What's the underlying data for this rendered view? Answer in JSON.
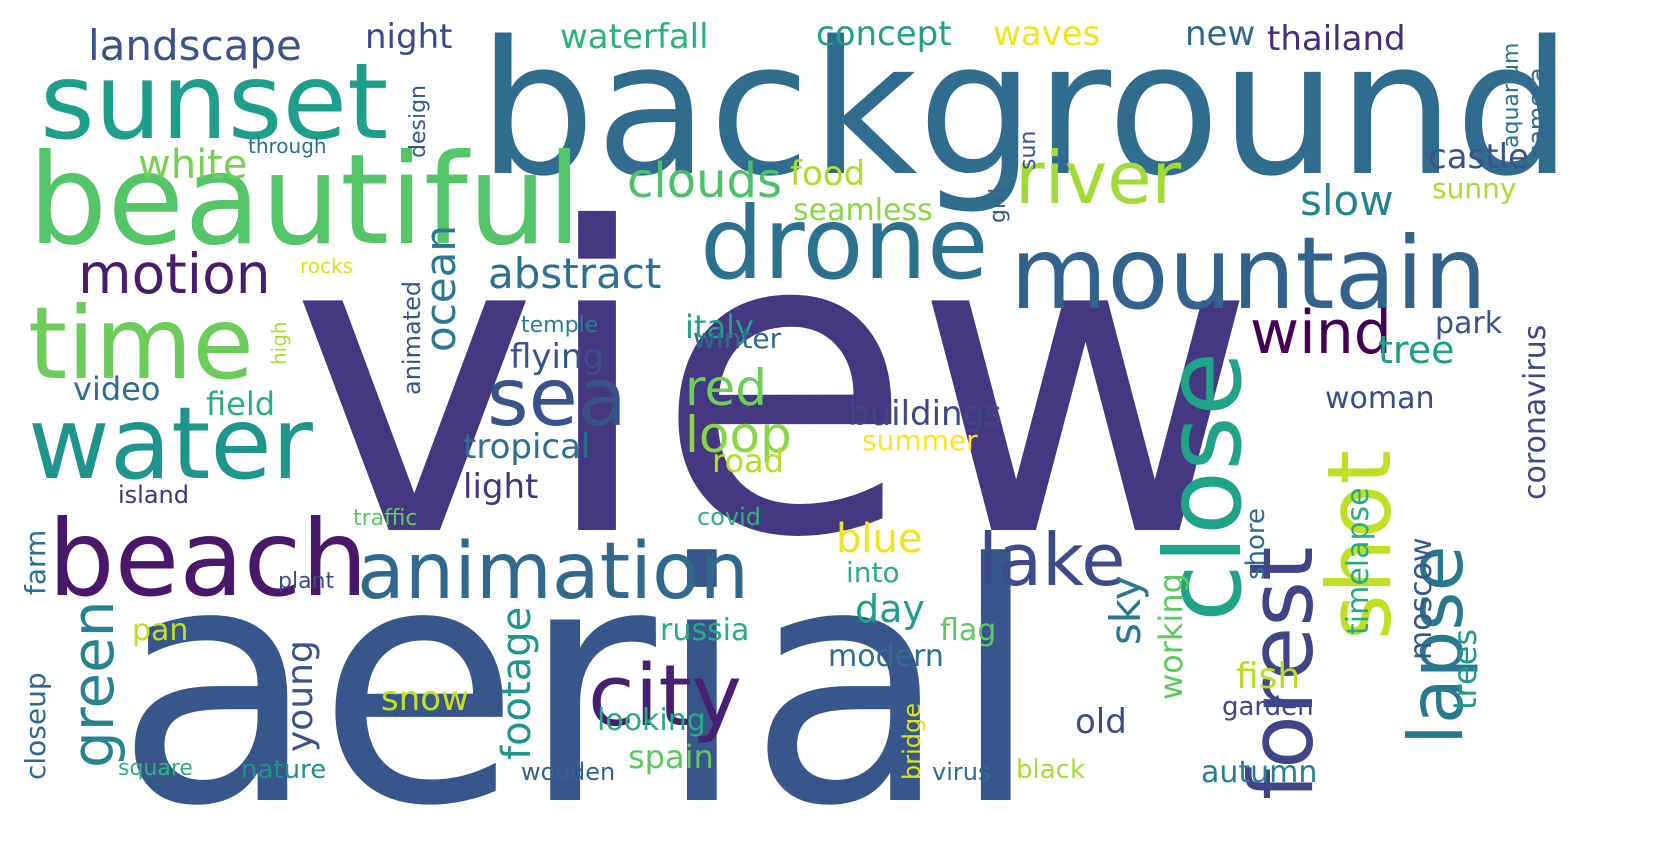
{
  "word_cloud": {
    "words": [
      {
        "text": "view",
        "color": "#453781"
      },
      {
        "text": "aerial",
        "color": "#39568c"
      },
      {
        "text": "background",
        "color": "#2f6c8e"
      },
      {
        "text": "beautiful",
        "color": "#54c568"
      },
      {
        "text": "sunset",
        "color": "#1f9e89"
      },
      {
        "text": "drone",
        "color": "#2c728e"
      },
      {
        "text": "mountain",
        "color": "#33638d"
      },
      {
        "text": "water",
        "color": "#1f958b"
      },
      {
        "text": "time",
        "color": "#6ccd5a"
      },
      {
        "text": "beach",
        "color": "#48186a"
      },
      {
        "text": "animation",
        "color": "#31688e"
      },
      {
        "text": "river",
        "color": "#a2da37"
      },
      {
        "text": "sea",
        "color": "#3a538b"
      },
      {
        "text": "city",
        "color": "#482071"
      },
      {
        "text": "lake",
        "color": "#3e4a89"
      },
      {
        "text": "close",
        "color": "#20a386"
      },
      {
        "text": "forest",
        "color": "#414487"
      },
      {
        "text": "shot",
        "color": "#c0df25"
      },
      {
        "text": "lapse",
        "color": "#2a788e"
      },
      {
        "text": "motion",
        "color": "#481c6e"
      },
      {
        "text": "green",
        "color": "#25848e"
      },
      {
        "text": "wind",
        "color": "#440154"
      },
      {
        "text": "landscape",
        "color": "#3b528b"
      },
      {
        "text": "abstract",
        "color": "#2c728e"
      },
      {
        "text": "clouds",
        "color": "#4ac16d"
      },
      {
        "text": "slow",
        "color": "#25848e"
      },
      {
        "text": "white",
        "color": "#75d054"
      },
      {
        "text": "ocean",
        "color": "#2a788e"
      },
      {
        "text": "red",
        "color": "#6ece58"
      },
      {
        "text": "loop",
        "color": "#8bd646"
      },
      {
        "text": "night",
        "color": "#3e4989"
      },
      {
        "text": "waterfall",
        "color": "#2db27d"
      },
      {
        "text": "concept",
        "color": "#1fa188"
      },
      {
        "text": "waves",
        "color": "#f1e51d"
      },
      {
        "text": "new",
        "color": "#31688e"
      },
      {
        "text": "thailand",
        "color": "#472d7b"
      },
      {
        "text": "castle",
        "color": "#3b528b"
      },
      {
        "text": "food",
        "color": "#b2dd2d"
      },
      {
        "text": "seamless",
        "color": "#8ed645"
      },
      {
        "text": "sunny",
        "color": "#addc30"
      },
      {
        "text": "aquarium",
        "color": "#2c728e"
      },
      {
        "text": "camera",
        "color": "#31688e"
      },
      {
        "text": "coronavirus",
        "color": "#404688"
      },
      {
        "text": "tree",
        "color": "#1f9f88"
      },
      {
        "text": "park",
        "color": "#3b528b"
      },
      {
        "text": "italy",
        "color": "#20a386"
      },
      {
        "text": "flying",
        "color": "#3b528b"
      },
      {
        "text": "winter",
        "color": "#31688e"
      },
      {
        "text": "temple",
        "color": "#26818e"
      },
      {
        "text": "video",
        "color": "#2f6c8e"
      },
      {
        "text": "field",
        "color": "#28ae80"
      },
      {
        "text": "tropical",
        "color": "#2e6f8e"
      },
      {
        "text": "light",
        "color": "#46337f"
      },
      {
        "text": "buildings",
        "color": "#3f4788"
      },
      {
        "text": "summer",
        "color": "#fde725"
      },
      {
        "text": "road",
        "color": "#b5de2b"
      },
      {
        "text": "woman",
        "color": "#3e4a89"
      },
      {
        "text": "island",
        "color": "#46307e"
      },
      {
        "text": "traffic",
        "color": "#5ec962"
      },
      {
        "text": "covid",
        "color": "#2db27d"
      },
      {
        "text": "blue",
        "color": "#f1e51d"
      },
      {
        "text": "into",
        "color": "#28ae80"
      },
      {
        "text": "day",
        "color": "#1f9e89"
      },
      {
        "text": "sky",
        "color": "#2a788e"
      },
      {
        "text": "young",
        "color": "#3b528b"
      },
      {
        "text": "footage",
        "color": "#1f958b"
      },
      {
        "text": "pan",
        "color": "#c2df23"
      },
      {
        "text": "russia",
        "color": "#26ad81"
      },
      {
        "text": "flag",
        "color": "#5ec962"
      },
      {
        "text": "modern",
        "color": "#2e6e8e"
      },
      {
        "text": "snow",
        "color": "#c5e021"
      },
      {
        "text": "looking",
        "color": "#25ac82"
      },
      {
        "text": "old",
        "color": "#3e4a89"
      },
      {
        "text": "spain",
        "color": "#5ec962"
      },
      {
        "text": "nature",
        "color": "#21918c"
      },
      {
        "text": "square",
        "color": "#2db27d"
      },
      {
        "text": "wooden",
        "color": "#33638d"
      },
      {
        "text": "virus",
        "color": "#2f6c8e"
      },
      {
        "text": "black",
        "color": "#a8db34"
      },
      {
        "text": "autumn",
        "color": "#27808e"
      },
      {
        "text": "fish",
        "color": "#b8de29"
      },
      {
        "text": "garden",
        "color": "#3f4788"
      },
      {
        "text": "trees",
        "color": "#1e9c89"
      },
      {
        "text": "working",
        "color": "#5ec962"
      },
      {
        "text": "timelapse",
        "color": "#26ad81"
      },
      {
        "text": "shore",
        "color": "#2f6b8e"
      },
      {
        "text": "moscow",
        "color": "#38588c"
      },
      {
        "text": "bridge",
        "color": "#dde318"
      },
      {
        "text": "closeup",
        "color": "#31688e"
      },
      {
        "text": "farm",
        "color": "#2e6e8e"
      },
      {
        "text": "plant",
        "color": "#3e4989"
      },
      {
        "text": "animated",
        "color": "#3b528b"
      },
      {
        "text": "high",
        "color": "#addc30"
      },
      {
        "text": "rocks",
        "color": "#dde318"
      },
      {
        "text": "through",
        "color": "#2e6e8e"
      },
      {
        "text": "design",
        "color": "#38598c"
      },
      {
        "text": "girl",
        "color": "#365d8d"
      },
      {
        "text": "sun",
        "color": "#3a538b"
      }
    ]
  }
}
